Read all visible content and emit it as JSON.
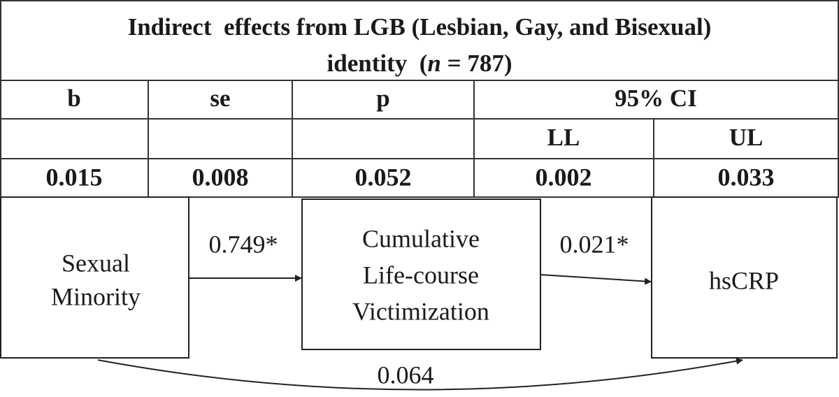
{
  "table": {
    "title": {
      "line1": "Indirect  effects from LGB (Lesbian, Gay, and Bisexual)",
      "line2": [
        "identity  (",
        "n",
        " = 787)"
      ]
    },
    "headers": [
      "b",
      "se",
      "p",
      "95% CI"
    ],
    "subheaders": [
      "LL",
      "UL"
    ],
    "rows": [
      [
        0.015,
        0.008,
        0.052,
        0.002,
        0.033
      ]
    ]
  },
  "diagram": {
    "nodes": [
      {
        "lines": [
          "Sexual",
          "Minority"
        ]
      },
      {
        "lines": [
          "Cumulative",
          "Life-course",
          "Victimization"
        ]
      },
      {
        "lines": [
          "hsCRP"
        ]
      }
    ],
    "edges": [
      {
        "label": "0.749*"
      },
      {
        "label": "0.021*"
      },
      {
        "label": "0.064"
      }
    ]
  }
}
